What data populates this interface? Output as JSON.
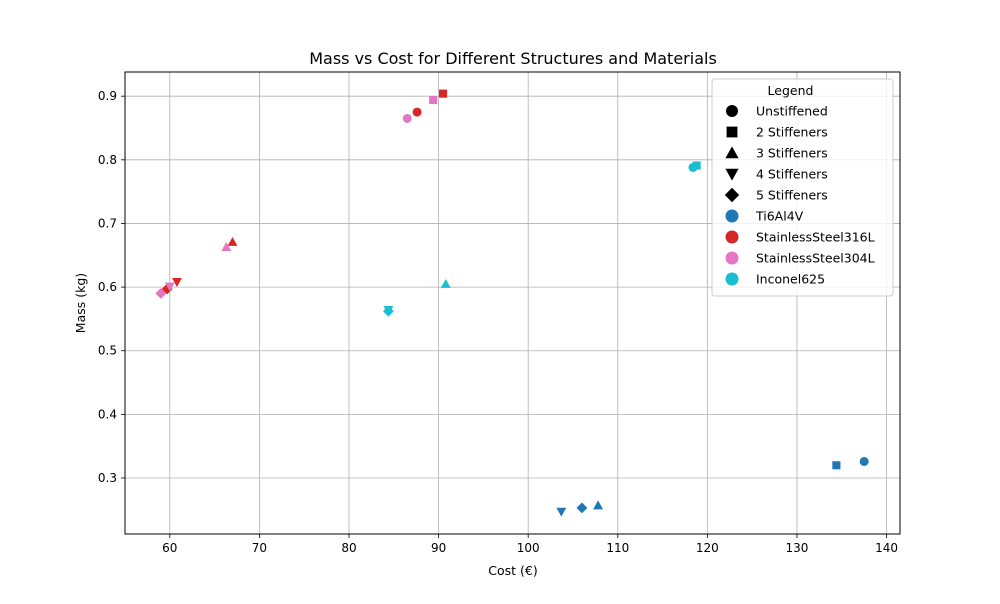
{
  "chart_data": {
    "type": "scatter",
    "title": "Mass vs Cost for Different Structures and Materials",
    "xlabel": "Cost (€)",
    "ylabel": "Mass (kg)",
    "xlim": [
      55,
      141.5
    ],
    "ylim": [
      0.212,
      0.938
    ],
    "xticks": [
      60,
      70,
      80,
      90,
      100,
      110,
      120,
      130,
      140
    ],
    "yticks": [
      0.3,
      0.4,
      0.5,
      0.6,
      0.7,
      0.8,
      0.9
    ],
    "grid": true,
    "legend": {
      "title": "Legend",
      "placement": "top-right",
      "structures": [
        {
          "name": "Unstiffened",
          "marker": "circle"
        },
        {
          "name": "2 Stiffeners",
          "marker": "square"
        },
        {
          "name": "3 Stiffeners",
          "marker": "triangle-up"
        },
        {
          "name": "4 Stiffeners",
          "marker": "triangle-down"
        },
        {
          "name": "5 Stiffeners",
          "marker": "diamond"
        }
      ],
      "materials": [
        {
          "name": "Ti6Al4V",
          "color": "#1f77b4"
        },
        {
          "name": "StainlessSteel316L",
          "color": "#d62728"
        },
        {
          "name": "StainlessSteel304L",
          "color": "#e377c2"
        },
        {
          "name": "Inconel625",
          "color": "#17becf"
        }
      ]
    },
    "points": [
      {
        "material": "Ti6Al4V",
        "structure": "Unstiffened",
        "x": 137.5,
        "y": 0.326
      },
      {
        "material": "Ti6Al4V",
        "structure": "2 Stiffeners",
        "x": 134.4,
        "y": 0.32
      },
      {
        "material": "Ti6Al4V",
        "structure": "3 Stiffeners",
        "x": 107.8,
        "y": 0.257
      },
      {
        "material": "Ti6Al4V",
        "structure": "4 Stiffeners",
        "x": 103.7,
        "y": 0.247
      },
      {
        "material": "Ti6Al4V",
        "structure": "5 Stiffeners",
        "x": 106.0,
        "y": 0.253
      },
      {
        "material": "StainlessSteel316L",
        "structure": "Unstiffened",
        "x": 87.6,
        "y": 0.875
      },
      {
        "material": "StainlessSteel316L",
        "structure": "2 Stiffeners",
        "x": 90.5,
        "y": 0.904
      },
      {
        "material": "StainlessSteel316L",
        "structure": "3 Stiffeners",
        "x": 67.0,
        "y": 0.671
      },
      {
        "material": "StainlessSteel316L",
        "structure": "4 Stiffeners",
        "x": 60.8,
        "y": 0.608
      },
      {
        "material": "StainlessSteel316L",
        "structure": "5 Stiffeners",
        "x": 59.7,
        "y": 0.597
      },
      {
        "material": "StainlessSteel304L",
        "structure": "Unstiffened",
        "x": 86.5,
        "y": 0.865
      },
      {
        "material": "StainlessSteel304L",
        "structure": "2 Stiffeners",
        "x": 89.4,
        "y": 0.894
      },
      {
        "material": "StainlessSteel304L",
        "structure": "3 Stiffeners",
        "x": 66.3,
        "y": 0.663
      },
      {
        "material": "StainlessSteel304L",
        "structure": "4 Stiffeners",
        "x": 60.0,
        "y": 0.601
      },
      {
        "material": "StainlessSteel304L",
        "structure": "5 Stiffeners",
        "x": 59.0,
        "y": 0.59
      },
      {
        "material": "Inconel625",
        "structure": "Unstiffened",
        "x": 118.4,
        "y": 0.788
      },
      {
        "material": "Inconel625",
        "structure": "2 Stiffeners",
        "x": 118.8,
        "y": 0.791
      },
      {
        "material": "Inconel625",
        "structure": "3 Stiffeners",
        "x": 90.8,
        "y": 0.605
      },
      {
        "material": "Inconel625",
        "structure": "4 Stiffeners",
        "x": 84.4,
        "y": 0.564
      },
      {
        "material": "Inconel625",
        "structure": "5 Stiffeners",
        "x": 84.4,
        "y": 0.562
      }
    ]
  }
}
